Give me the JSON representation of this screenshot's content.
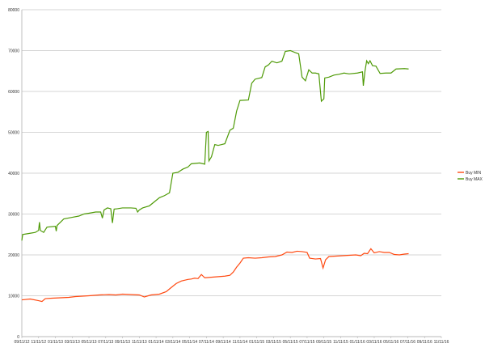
{
  "chart_data": {
    "type": "line",
    "title": "",
    "xlabel": "",
    "ylabel": "",
    "ylim": [
      0,
      80000
    ],
    "yticks": [
      0,
      10000,
      20000,
      30000,
      40000,
      50000,
      60000,
      70000,
      80000
    ],
    "grid": "horizontal",
    "legend_position": "right",
    "x_tick_labels": [
      "09/11/12",
      "11/11/12",
      "01/11/13",
      "03/11/13",
      "05/11/13",
      "07/11/13",
      "09/11/13",
      "11/11/13",
      "01/11/14",
      "03/11/14",
      "05/11/14",
      "07/11/14",
      "09/11/14",
      "11/11/14",
      "01/11/15",
      "03/11/15",
      "05/11/15",
      "07/11/15",
      "09/11/15",
      "11/11/15",
      "01/11/16",
      "03/11/16",
      "05/11/16",
      "07/11/16",
      "09/11/16",
      "11/11/16"
    ],
    "series": [
      {
        "name": "Buy MIN",
        "color": "#ff4a12",
        "points": [
          [
            0,
            9000
          ],
          [
            0.5,
            9200
          ],
          [
            1,
            8800
          ],
          [
            1.2,
            8600
          ],
          [
            1.4,
            9300
          ],
          [
            1.8,
            9400
          ],
          [
            2.3,
            9500
          ],
          [
            2.8,
            9600
          ],
          [
            3.2,
            9800
          ],
          [
            3.6,
            9900
          ],
          [
            4,
            10000
          ],
          [
            4.6,
            10200
          ],
          [
            5.2,
            10300
          ],
          [
            5.6,
            10200
          ],
          [
            6,
            10400
          ],
          [
            6.5,
            10300
          ],
          [
            7,
            10200
          ],
          [
            7.3,
            9700
          ],
          [
            7.7,
            10200
          ],
          [
            8.2,
            10400
          ],
          [
            8.6,
            11000
          ],
          [
            8.9,
            12000
          ],
          [
            9.2,
            13000
          ],
          [
            9.5,
            13600
          ],
          [
            9.9,
            14000
          ],
          [
            10.1,
            14100
          ],
          [
            10.3,
            14300
          ],
          [
            10.5,
            14200
          ],
          [
            10.7,
            15200
          ],
          [
            10.9,
            14400
          ],
          [
            11.2,
            14500
          ],
          [
            11.5,
            14600
          ],
          [
            11.8,
            14700
          ],
          [
            12.1,
            14800
          ],
          [
            12.4,
            15000
          ],
          [
            12.6,
            15800
          ],
          [
            12.8,
            17000
          ],
          [
            13,
            18000
          ],
          [
            13.2,
            19200
          ],
          [
            13.5,
            19300
          ],
          [
            13.9,
            19200
          ],
          [
            14.3,
            19300
          ],
          [
            14.7,
            19500
          ],
          [
            15.1,
            19600
          ],
          [
            15.5,
            20000
          ],
          [
            15.8,
            20700
          ],
          [
            16.1,
            20600
          ],
          [
            16.4,
            20900
          ],
          [
            16.7,
            20800
          ],
          [
            17,
            20600
          ],
          [
            17.15,
            19200
          ],
          [
            17.5,
            19000
          ],
          [
            17.8,
            19100
          ],
          [
            17.95,
            16800
          ],
          [
            18.1,
            18800
          ],
          [
            18.3,
            19600
          ],
          [
            18.7,
            19700
          ],
          [
            19.1,
            19800
          ],
          [
            19.5,
            19900
          ],
          [
            19.9,
            20000
          ],
          [
            20.2,
            19800
          ],
          [
            20.4,
            20400
          ],
          [
            20.6,
            20300
          ],
          [
            20.8,
            21500
          ],
          [
            21,
            20500
          ],
          [
            21.3,
            20800
          ],
          [
            21.6,
            20600
          ],
          [
            21.9,
            20600
          ],
          [
            22.2,
            20100
          ],
          [
            22.5,
            20000
          ],
          [
            22.8,
            20200
          ],
          [
            23.05,
            20300
          ]
        ]
      },
      {
        "name": "Buy MAX",
        "color": "#4e9a06",
        "points": [
          [
            0,
            23500
          ],
          [
            0.05,
            25000
          ],
          [
            0.5,
            25300
          ],
          [
            0.8,
            25500
          ],
          [
            1,
            26000
          ],
          [
            1.05,
            28000
          ],
          [
            1.1,
            26000
          ],
          [
            1.3,
            25500
          ],
          [
            1.5,
            26800
          ],
          [
            2,
            27000
          ],
          [
            2.05,
            25800
          ],
          [
            2.1,
            27200
          ],
          [
            2.5,
            28800
          ],
          [
            3,
            29200
          ],
          [
            3.4,
            29500
          ],
          [
            3.7,
            30000
          ],
          [
            4,
            30200
          ],
          [
            4.4,
            30500
          ],
          [
            4.7,
            30500
          ],
          [
            4.8,
            29000
          ],
          [
            4.9,
            31000
          ],
          [
            5.1,
            31500
          ],
          [
            5.3,
            31300
          ],
          [
            5.4,
            27800
          ],
          [
            5.5,
            31200
          ],
          [
            5.7,
            31300
          ],
          [
            6,
            31500
          ],
          [
            6.5,
            31500
          ],
          [
            6.8,
            31400
          ],
          [
            6.9,
            30500
          ],
          [
            7,
            31000
          ],
          [
            7.2,
            31500
          ],
          [
            7.6,
            32000
          ],
          [
            7.9,
            33000
          ],
          [
            8.2,
            34000
          ],
          [
            8.5,
            34500
          ],
          [
            8.8,
            35200
          ],
          [
            9,
            40000
          ],
          [
            9.3,
            40200
          ],
          [
            9.6,
            41000
          ],
          [
            9.9,
            41500
          ],
          [
            10.1,
            42300
          ],
          [
            10.6,
            42500
          ],
          [
            10.9,
            42200
          ],
          [
            11,
            50000
          ],
          [
            11.1,
            50200
          ],
          [
            11.15,
            43000
          ],
          [
            11.3,
            44000
          ],
          [
            11.5,
            47000
          ],
          [
            11.7,
            46800
          ],
          [
            12.1,
            47200
          ],
          [
            12.4,
            50500
          ],
          [
            12.6,
            51000
          ],
          [
            12.8,
            55200
          ],
          [
            13,
            57800
          ],
          [
            13.5,
            57900
          ],
          [
            13.7,
            62000
          ],
          [
            13.9,
            63000
          ],
          [
            14.3,
            63400
          ],
          [
            14.5,
            66000
          ],
          [
            14.7,
            66500
          ],
          [
            14.9,
            67400
          ],
          [
            15.2,
            67000
          ],
          [
            15.5,
            67400
          ],
          [
            15.7,
            69800
          ],
          [
            16,
            70000
          ],
          [
            16.3,
            69500
          ],
          [
            16.5,
            69200
          ],
          [
            16.7,
            63500
          ],
          [
            16.9,
            62600
          ],
          [
            17.1,
            65300
          ],
          [
            17.3,
            64500
          ],
          [
            17.5,
            64500
          ],
          [
            17.7,
            64300
          ],
          [
            17.85,
            57600
          ],
          [
            18,
            58200
          ],
          [
            18.05,
            63300
          ],
          [
            18.3,
            63500
          ],
          [
            18.6,
            64000
          ],
          [
            18.9,
            64200
          ],
          [
            19.2,
            64500
          ],
          [
            19.5,
            64300
          ],
          [
            20,
            64500
          ],
          [
            20.3,
            64800
          ],
          [
            20.35,
            61400
          ],
          [
            20.45,
            65000
          ],
          [
            20.55,
            67500
          ],
          [
            20.65,
            66800
          ],
          [
            20.75,
            67500
          ],
          [
            20.9,
            66300
          ],
          [
            21.1,
            66200
          ],
          [
            21.35,
            64400
          ],
          [
            21.7,
            64500
          ],
          [
            22,
            64500
          ],
          [
            22.3,
            65500
          ],
          [
            22.8,
            65600
          ],
          [
            23.05,
            65500
          ]
        ]
      }
    ]
  }
}
